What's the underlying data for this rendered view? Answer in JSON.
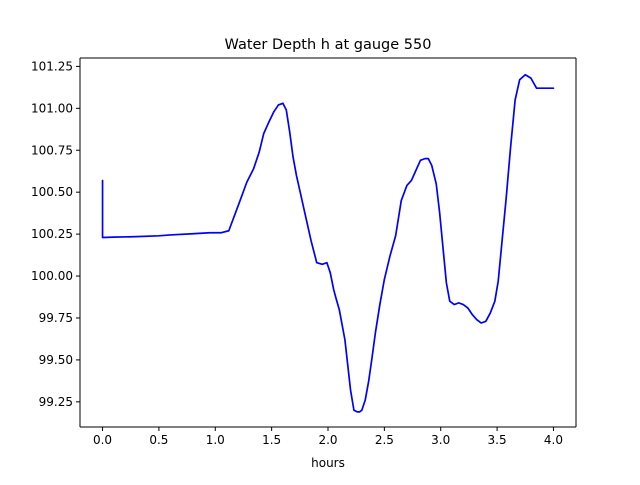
{
  "chart_data": {
    "type": "line",
    "title": "Water Depth h at gauge 550",
    "xlabel": "hours",
    "ylabel": "",
    "xlim": [
      -0.2,
      4.2
    ],
    "ylim": [
      99.1,
      101.3
    ],
    "grid": false,
    "xticks": [
      0.0,
      0.5,
      1.0,
      1.5,
      2.0,
      2.5,
      3.0,
      3.5,
      4.0
    ],
    "xtick_labels": [
      "0.0",
      "0.5",
      "1.0",
      "1.5",
      "2.0",
      "2.5",
      "3.0",
      "3.5",
      "4.0"
    ],
    "yticks": [
      99.25,
      99.5,
      99.75,
      100.0,
      100.25,
      100.5,
      100.75,
      101.0,
      101.25
    ],
    "ytick_labels": [
      "99.25",
      "99.50",
      "99.75",
      "100.00",
      "100.25",
      "100.50",
      "100.75",
      "101.00",
      "101.25"
    ],
    "series": [
      {
        "color": "#0000ff",
        "x": [
          0.0,
          0.0,
          0.1,
          0.3,
          0.5,
          0.6,
          0.8,
          0.95,
          1.05,
          1.12,
          1.17,
          1.22,
          1.28,
          1.34,
          1.39,
          1.43,
          1.47,
          1.52,
          1.56,
          1.6,
          1.63,
          1.66,
          1.69,
          1.72,
          1.75,
          1.8,
          1.85,
          1.9,
          1.95,
          1.99,
          2.02,
          2.05,
          2.07,
          2.1,
          2.15,
          2.2,
          2.23,
          2.26,
          2.28,
          2.3,
          2.33,
          2.36,
          2.39,
          2.42,
          2.46,
          2.5,
          2.55,
          2.6,
          2.65,
          2.7,
          2.74,
          2.78,
          2.82,
          2.86,
          2.89,
          2.92,
          2.96,
          2.99,
          3.02,
          3.05,
          3.08,
          3.12,
          3.16,
          3.2,
          3.24,
          3.28,
          3.32,
          3.36,
          3.4,
          3.44,
          3.48,
          3.51,
          3.54,
          3.58,
          3.62,
          3.66,
          3.7,
          3.75,
          3.8,
          3.85,
          3.9,
          3.93,
          3.96,
          3.98,
          4.0
        ],
        "values": [
          100.57,
          100.23,
          100.232,
          100.235,
          100.24,
          100.245,
          100.252,
          100.258,
          100.258,
          100.27,
          100.36,
          100.45,
          100.56,
          100.64,
          100.74,
          100.85,
          100.91,
          100.98,
          101.02,
          101.03,
          100.99,
          100.86,
          100.71,
          100.6,
          100.51,
          100.36,
          100.21,
          100.08,
          100.07,
          100.08,
          100.02,
          99.92,
          99.87,
          99.8,
          99.62,
          99.32,
          99.2,
          99.19,
          99.19,
          99.2,
          99.26,
          99.37,
          99.51,
          99.66,
          99.83,
          99.98,
          100.12,
          100.24,
          100.45,
          100.54,
          100.57,
          100.63,
          100.69,
          100.7,
          100.7,
          100.66,
          100.55,
          100.38,
          100.17,
          99.96,
          99.85,
          99.83,
          99.84,
          99.83,
          99.81,
          99.77,
          99.74,
          99.72,
          99.73,
          99.78,
          99.85,
          99.97,
          100.18,
          100.46,
          100.77,
          101.05,
          101.17,
          101.2,
          101.18,
          101.12,
          101.12,
          101.12,
          101.12,
          101.12,
          101.12
        ]
      }
    ]
  }
}
